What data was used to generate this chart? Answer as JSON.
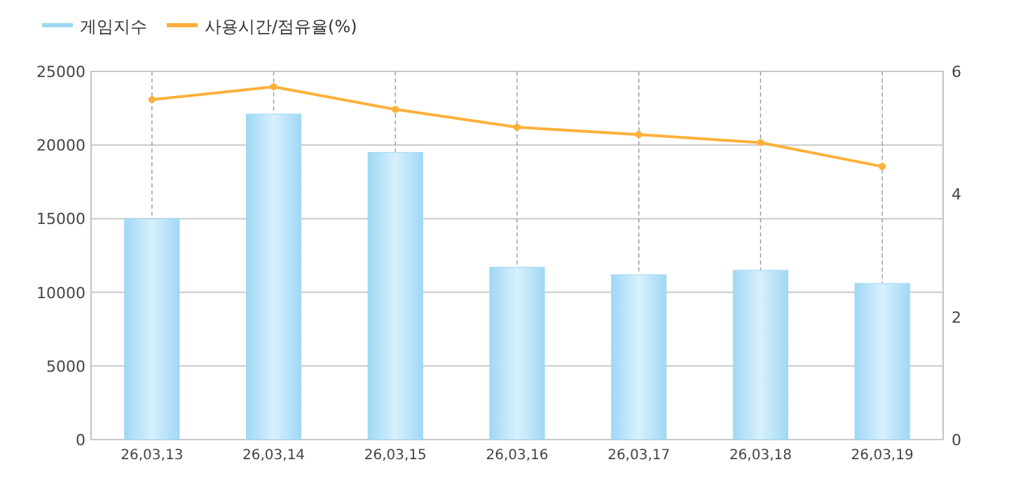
{
  "chart_data": {
    "type": "bar",
    "categories": [
      "26,03,13",
      "26,03,14",
      "26,03,15",
      "26,03,16",
      "26,03,17",
      "26,03,18",
      "26,03,19"
    ],
    "series": [
      {
        "name": "게임지수",
        "color": "#9fd8f5",
        "values": [
          15000,
          22100,
          19500,
          11700,
          11200,
          11500,
          10600
        ]
      },
      {
        "name": "사용시간/점유율(%)",
        "type": "line",
        "axis": "y2",
        "color": "#ffb03a",
        "values": [
          5.54,
          5.75,
          5.38,
          5.09,
          4.97,
          4.84,
          4.45
        ]
      }
    ],
    "ylim": [
      0,
      25000
    ],
    "yticks": [
      0,
      5000,
      10000,
      15000,
      20000,
      25000
    ],
    "y2lim": [
      0,
      6
    ],
    "y2ticks": [
      0,
      2,
      4,
      6
    ],
    "grid": true,
    "legend": "top left",
    "marker": "circle"
  }
}
